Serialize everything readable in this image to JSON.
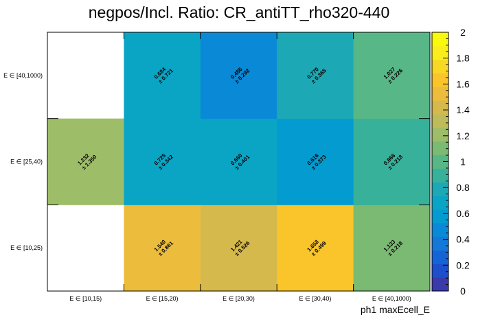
{
  "chart_data": {
    "type": "heatmap",
    "title": "negpos/Incl. Ratio: CR_antiTT_rho320-440",
    "xlabel": "ph1 maxEcell_E",
    "ylabel": "",
    "x_categories": [
      "E ∈ [10,15)",
      "E ∈ [15,20)",
      "E ∈ [20,30)",
      "E ∈ [30,40)",
      "E ∈ [40,1000)"
    ],
    "y_categories": [
      "E ∈ [10,25)",
      "E ∈ [25,40)",
      "E ∈ [40,1000)"
    ],
    "cells": [
      {
        "x": 0,
        "y": 1,
        "value": 1.232,
        "value_label": "1.232",
        "error_label": "± 1.350"
      },
      {
        "x": 1,
        "y": 0,
        "value": 1.54,
        "value_label": "1.540",
        "error_label": "± 0.861"
      },
      {
        "x": 1,
        "y": 1,
        "value": 0.725,
        "value_label": "0.725",
        "error_label": "± 0.342"
      },
      {
        "x": 1,
        "y": 2,
        "value": 0.684,
        "value_label": "0.684",
        "error_label": "± 0.721"
      },
      {
        "x": 2,
        "y": 0,
        "value": 1.421,
        "value_label": "1.421",
        "error_label": "± 0.526"
      },
      {
        "x": 2,
        "y": 1,
        "value": 0.66,
        "value_label": "0.660",
        "error_label": "± 0.401"
      },
      {
        "x": 2,
        "y": 2,
        "value": 0.486,
        "value_label": "0.486",
        "error_label": "± 0.292"
      },
      {
        "x": 3,
        "y": 0,
        "value": 1.658,
        "value_label": "1.658",
        "error_label": "± 0.499"
      },
      {
        "x": 3,
        "y": 1,
        "value": 0.616,
        "value_label": "0.616",
        "error_label": "± 0.373"
      },
      {
        "x": 3,
        "y": 2,
        "value": 0.77,
        "value_label": "0.770",
        "error_label": "± 0.365"
      },
      {
        "x": 4,
        "y": 0,
        "value": 1.133,
        "value_label": "1.133",
        "error_label": "± 0.218"
      },
      {
        "x": 4,
        "y": 1,
        "value": 0.866,
        "value_label": "0.866",
        "error_label": "± 0.218"
      },
      {
        "x": 4,
        "y": 2,
        "value": 1.027,
        "value_label": "1.027",
        "error_label": "± 0.226"
      }
    ],
    "zlim": [
      0,
      2
    ],
    "colorbar_ticks": [
      "0",
      "0.2",
      "0.4",
      "0.6",
      "0.8",
      "1",
      "1.2",
      "1.4",
      "1.6",
      "1.8",
      "2"
    ],
    "colorbar_position": "right",
    "grid": false,
    "palette": [
      "#3a3aa8",
      "#1d4fcc",
      "#1464d8",
      "#1478d8",
      "#0a8ad6",
      "#049bd0",
      "#0aa5c5",
      "#1ca9b5",
      "#38b19a",
      "#58b787",
      "#7aba72",
      "#9ebd68",
      "#bdbb5a",
      "#d6b94c",
      "#ecbc3d",
      "#f9c52b",
      "#f8d824",
      "#f9ee1c",
      "#f9f910"
    ]
  }
}
